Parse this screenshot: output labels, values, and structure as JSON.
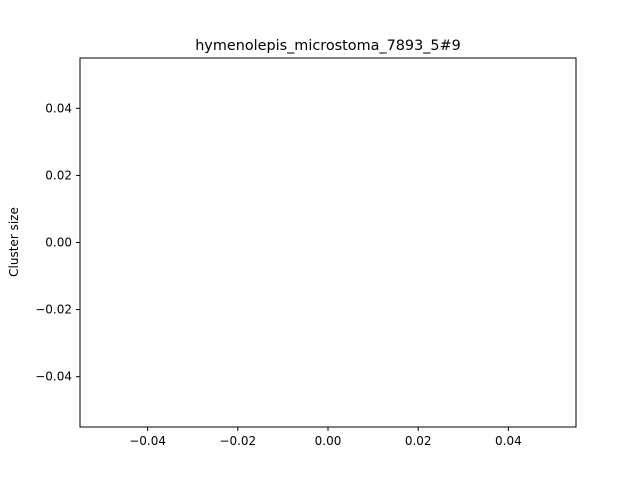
{
  "chart_data": {
    "type": "scatter",
    "title": "hymenolepis_microstoma_7893_5#9",
    "xlabel": "",
    "ylabel": "Cluster size",
    "xlim": [
      -0.055,
      0.055
    ],
    "ylim": [
      -0.055,
      0.055
    ],
    "xticks": [
      -0.04,
      -0.02,
      0.0,
      0.02,
      0.04
    ],
    "xtick_labels": [
      "−0.04",
      "−0.02",
      "0.00",
      "0.02",
      "0.04"
    ],
    "yticks": [
      -0.04,
      -0.02,
      0.0,
      0.02,
      0.04
    ],
    "ytick_labels": [
      "−0.04",
      "−0.02",
      "0.00",
      "0.02",
      "0.04"
    ],
    "grid": false,
    "series": [
      {
        "x": [],
        "y": []
      }
    ]
  }
}
